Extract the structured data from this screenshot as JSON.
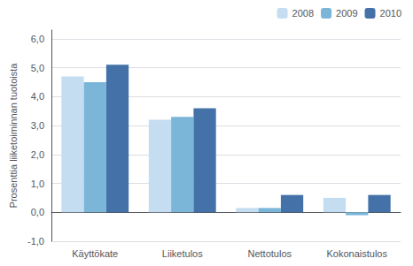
{
  "chart_data": {
    "type": "bar",
    "categories": [
      "Käyttökate",
      "Liiketulos",
      "Nettotulos",
      "Kokonaistulos"
    ],
    "series": [
      {
        "name": "2008",
        "color": "#c5ddf0",
        "values": [
          4.7,
          3.2,
          0.15,
          0.5
        ]
      },
      {
        "name": "2009",
        "color": "#7bb6d9",
        "values": [
          4.5,
          3.3,
          0.15,
          -0.1
        ]
      },
      {
        "name": "2010",
        "color": "#4472a8",
        "values": [
          5.1,
          3.6,
          0.6,
          0.6
        ]
      }
    ],
    "ylabel": "Prosenttia liiketoiminnan tuotoista",
    "ylim": [
      -1.0,
      6.3
    ],
    "yticks": [
      {
        "value": -1.0,
        "label": "-1,0"
      },
      {
        "value": 0.0,
        "label": "0,0"
      },
      {
        "value": 1.0,
        "label": "1,0"
      },
      {
        "value": 2.0,
        "label": "2,0"
      },
      {
        "value": 3.0,
        "label": "3,0"
      },
      {
        "value": 4.0,
        "label": "4,0"
      },
      {
        "value": 5.0,
        "label": "5,0"
      },
      {
        "value": 6.0,
        "label": "6,0"
      }
    ],
    "grid": true,
    "legend": "upper right"
  }
}
